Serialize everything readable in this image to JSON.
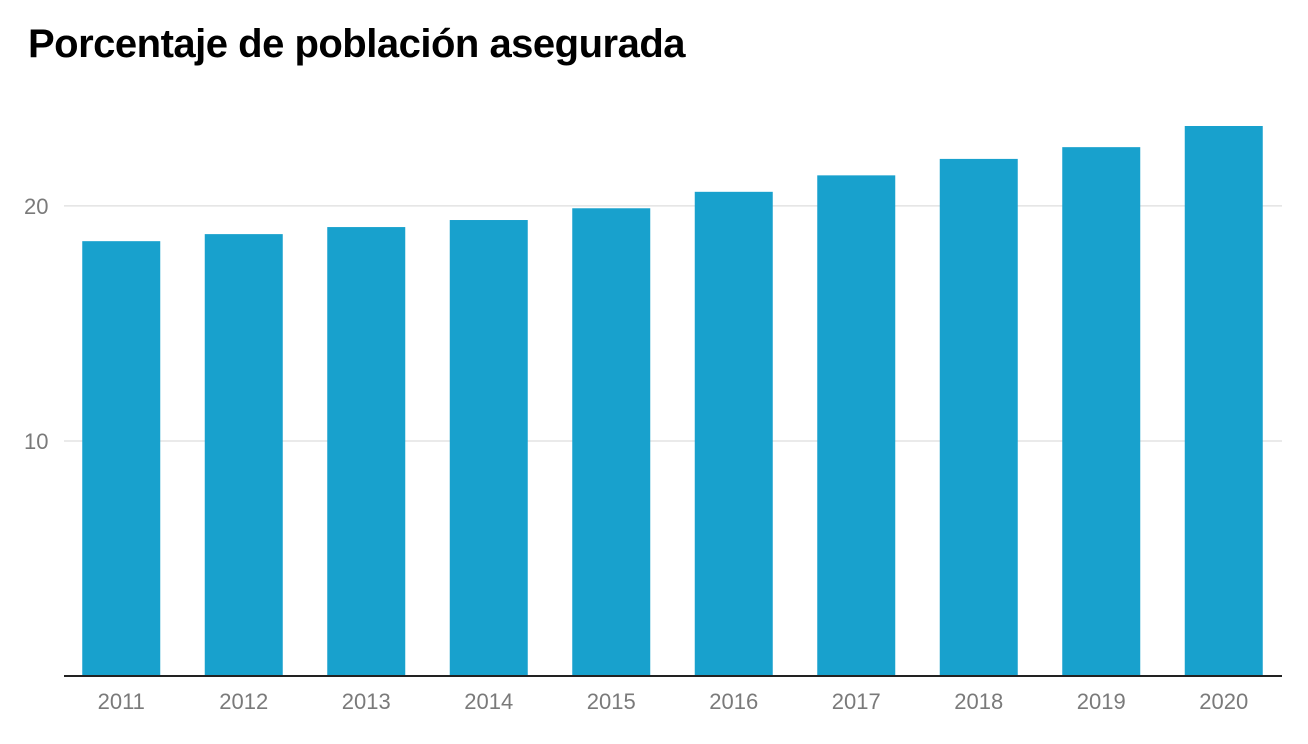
{
  "chart_data": {
    "type": "bar",
    "title": "Porcentaje de población asegurada",
    "xlabel": "",
    "ylabel": "",
    "categories": [
      "2011",
      "2012",
      "2013",
      "2014",
      "2015",
      "2016",
      "2017",
      "2018",
      "2019",
      "2020"
    ],
    "values": [
      18.5,
      18.8,
      19.1,
      19.4,
      19.9,
      20.6,
      21.3,
      22.0,
      22.5,
      23.4
    ],
    "ylim": [
      0,
      23.4
    ],
    "yticks": [
      10,
      20
    ],
    "grid": true,
    "legend": "none",
    "colors": {
      "bar": "#18a1cd",
      "grid": "#e3e3e3",
      "axis": "#222222"
    }
  }
}
